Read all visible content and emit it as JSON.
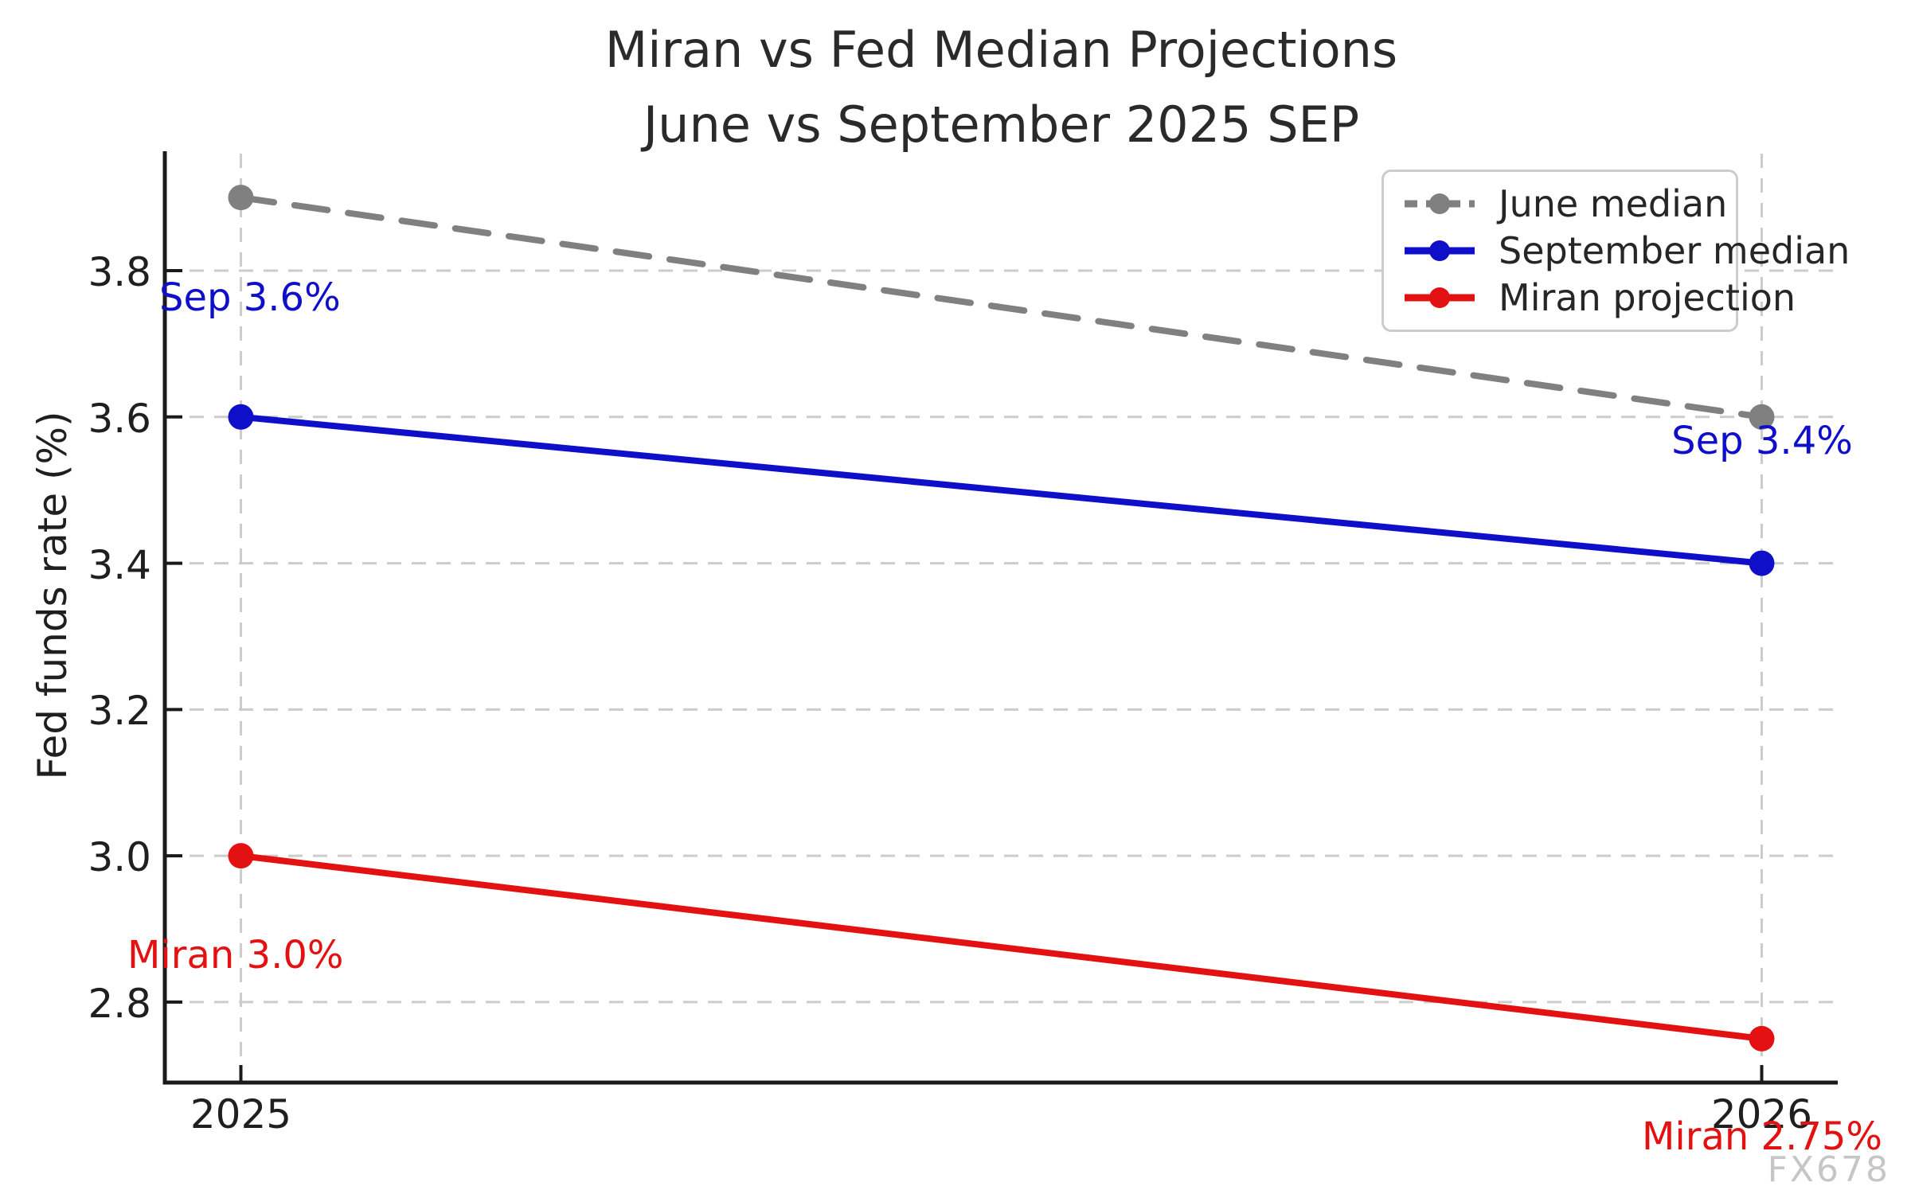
{
  "title": {
    "line1": "Miran vs Fed Median Projections",
    "line2": "June vs September 2025 SEP"
  },
  "chart_data": {
    "type": "line",
    "x": [
      2025,
      2026
    ],
    "xlabel": "",
    "ylabel": "Fed funds rate (%)",
    "series": [
      {
        "name": "June median",
        "values": [
          3.9,
          3.6
        ],
        "color": "#808080",
        "style": "dashed"
      },
      {
        "name": "September median",
        "values": [
          3.6,
          3.4
        ],
        "color": "#0f0fc9",
        "style": "solid"
      },
      {
        "name": "Miran projection",
        "values": [
          3.0,
          2.75
        ],
        "color": "#e31111",
        "style": "solid"
      }
    ],
    "xticks": [
      2025,
      2026
    ],
    "yticks": [
      2.8,
      3.0,
      3.2,
      3.4,
      3.6,
      3.8
    ],
    "xlim": [
      2024.95,
      2026.05
    ],
    "ylim": [
      2.69,
      3.96
    ],
    "grid": true,
    "grid_color": "#cccccc",
    "legend_position": "upper right"
  },
  "annotations": {
    "sep_2025": {
      "text": "Sep 3.6%",
      "color": "#0f0fc9"
    },
    "sep_2026": {
      "text": "Sep 3.4%",
      "color": "#0f0fc9"
    },
    "miran_2025": {
      "text": "Miran 3.0%",
      "color": "#e31111"
    },
    "miran_2026": {
      "text": "Miran 2.75%",
      "color": "#e31111"
    }
  },
  "watermark": "FX678"
}
